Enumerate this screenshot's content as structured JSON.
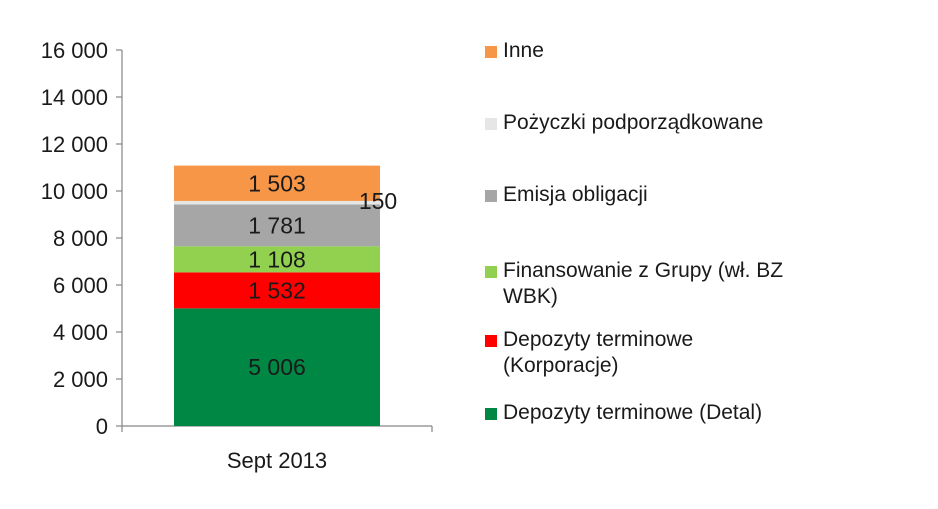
{
  "chart_data": {
    "type": "bar",
    "stacked": true,
    "categories": [
      "Sept 2013"
    ],
    "yticks": [
      "0",
      "2 000",
      "4 000",
      "6 000",
      "8 000",
      "10 000",
      "12 000",
      "14 000",
      "16 000"
    ],
    "ylim": [
      0,
      16000
    ],
    "grid": false,
    "legend_position": "right",
    "series": [
      {
        "name": "Depozyty terminowe (Detal)",
        "values": [
          5006
        ],
        "label": "5 006",
        "color": "#008744"
      },
      {
        "name": "Depozyty terminowe (Korporacje)",
        "values": [
          1532
        ],
        "label": "1 532",
        "color": "#ff0000"
      },
      {
        "name": "Finansowanie z Grupy (wł. BZ WBK)",
        "values": [
          1108
        ],
        "label": "1 108",
        "color": "#92d050"
      },
      {
        "name": "Emisja obligacji",
        "values": [
          1781
        ],
        "label": "1 781",
        "color": "#a6a6a6"
      },
      {
        "name": "Pożyczki podporządkowane",
        "values": [
          150
        ],
        "label": "150",
        "color": "#e6e6e6"
      },
      {
        "name": "Inne",
        "values": [
          1503
        ],
        "label": "1 503",
        "color": "#f79646"
      }
    ]
  },
  "legend": {
    "items": [
      {
        "text": "Inne",
        "color": "#f79646"
      },
      {
        "text": "Pożyczki podporządkowane",
        "color": "#e6e6e6"
      },
      {
        "text": "Emisja obligacji",
        "color": "#a6a6a6"
      },
      {
        "text": "Finansowanie z Grupy (wł. BZ\nWBK)",
        "color": "#92d050"
      },
      {
        "text": "Depozyty terminowe\n(Korporacje)",
        "color": "#ff0000"
      },
      {
        "text": "Depozyty terminowe (Detal)",
        "color": "#008744"
      }
    ]
  }
}
